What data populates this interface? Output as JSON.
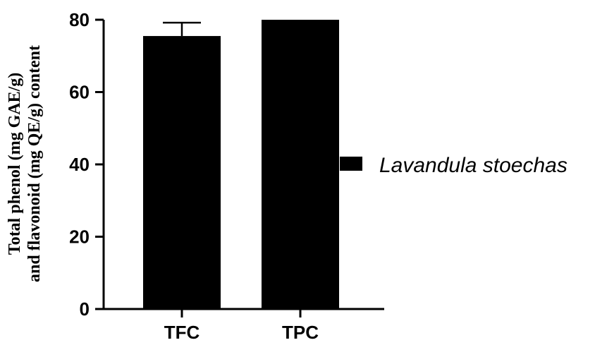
{
  "chart_data": {
    "type": "bar",
    "categories": [
      "TFC",
      "TPC"
    ],
    "series": [
      {
        "name": "Lavandula stoechas",
        "values": [
          75.5,
          80
        ],
        "errors": [
          3.7,
          0
        ],
        "color": "#000000"
      }
    ],
    "ylabel_line1": "Total phenol (mg GAE/g)",
    "ylabel_line2": "and flavonoid (mg QE/g) content",
    "xlabel": "",
    "ylim": [
      0,
      80
    ],
    "yticks": [
      0,
      20,
      40,
      60,
      80
    ],
    "grid": false,
    "legend_position": "right"
  }
}
